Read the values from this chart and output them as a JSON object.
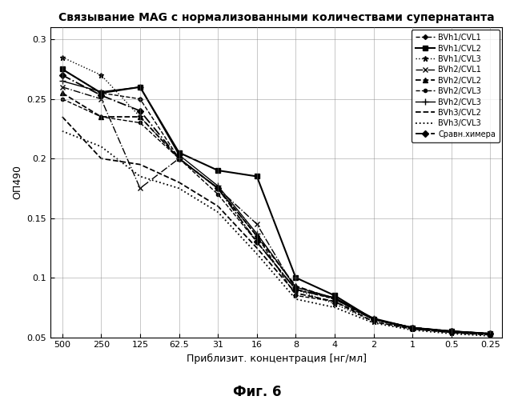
{
  "title": "Связывание MAG с нормализованными количествами супернатанта",
  "xlabel": "Приблизит. концентрация [нг/мл]",
  "ylabel": "ОП490",
  "caption": "Фиг. 6",
  "x_labels": [
    "500",
    "250",
    "125",
    "62.5",
    "31",
    "16",
    "8",
    "4",
    "2",
    "1",
    "0.5",
    "0.25"
  ],
  "x_values": [
    0,
    1,
    2,
    3,
    4,
    5,
    6,
    7,
    8,
    9,
    10,
    11
  ],
  "ylim": [
    0.05,
    0.31
  ],
  "yticks": [
    0.05,
    0.1,
    0.15,
    0.2,
    0.25,
    0.3
  ],
  "series": [
    {
      "label": "BVh1/CVL1",
      "linestyle": "--",
      "marker": "D",
      "markersize": 3,
      "linewidth": 1.0,
      "values": [
        0.275,
        0.255,
        0.25,
        0.2,
        0.175,
        0.135,
        0.085,
        0.08,
        0.065,
        0.058,
        0.055,
        0.053
      ]
    },
    {
      "label": "BVh1/CVL2",
      "linestyle": "-",
      "marker": "s",
      "markersize": 4,
      "linewidth": 1.5,
      "values": [
        0.275,
        0.255,
        0.26,
        0.205,
        0.19,
        0.185,
        0.1,
        0.085,
        0.065,
        0.058,
        0.055,
        0.053
      ]
    },
    {
      "label": "BVh1/CVL3",
      "linestyle": ":",
      "marker": "*",
      "markersize": 5,
      "linewidth": 1.0,
      "values": [
        0.285,
        0.27,
        0.235,
        0.2,
        0.175,
        0.13,
        0.09,
        0.078,
        0.063,
        0.057,
        0.054,
        0.052
      ]
    },
    {
      "label": "BVh2/CVL1",
      "linestyle": "-.",
      "marker": "x",
      "markersize": 5,
      "linewidth": 1.0,
      "values": [
        0.26,
        0.25,
        0.175,
        0.2,
        0.175,
        0.145,
        0.09,
        0.083,
        0.065,
        0.058,
        0.055,
        0.053
      ]
    },
    {
      "label": "BVh2/CVL2",
      "linestyle": "--",
      "marker": "^",
      "markersize": 4,
      "linewidth": 1.3,
      "values": [
        0.255,
        0.235,
        0.235,
        0.2,
        0.175,
        0.135,
        0.093,
        0.082,
        0.065,
        0.058,
        0.055,
        0.053
      ]
    },
    {
      "label": "BVh2/CVL3",
      "linestyle": "--",
      "marker": "o",
      "markersize": 3,
      "linewidth": 1.0,
      "values": [
        0.25,
        0.235,
        0.23,
        0.2,
        0.17,
        0.13,
        0.09,
        0.082,
        0.065,
        0.057,
        0.054,
        0.052
      ]
    },
    {
      "label": "BVh2/CVL3",
      "linestyle": "-",
      "marker": "+",
      "markersize": 6,
      "linewidth": 1.0,
      "values": [
        0.265,
        0.256,
        0.26,
        0.203,
        0.177,
        0.137,
        0.092,
        0.083,
        0.066,
        0.058,
        0.055,
        0.053
      ]
    },
    {
      "label": "BVh3/CVL2",
      "linestyle": "--",
      "marker": "None",
      "markersize": 3,
      "linewidth": 1.3,
      "values": [
        0.235,
        0.2,
        0.195,
        0.18,
        0.16,
        0.125,
        0.087,
        0.08,
        0.063,
        0.057,
        0.054,
        0.052
      ]
    },
    {
      "label": "BVh3/CVL3",
      "linestyle": ":",
      "marker": "None",
      "markersize": 3,
      "linewidth": 1.3,
      "values": [
        0.223,
        0.21,
        0.185,
        0.175,
        0.155,
        0.12,
        0.082,
        0.075,
        0.062,
        0.056,
        0.053,
        0.051
      ]
    },
    {
      "label": "Сравн.химера",
      "linestyle": "-.",
      "marker": "D",
      "markersize": 4,
      "linewidth": 1.3,
      "values": [
        0.27,
        0.253,
        0.24,
        0.2,
        0.175,
        0.13,
        0.09,
        0.083,
        0.065,
        0.058,
        0.055,
        0.053
      ]
    }
  ]
}
